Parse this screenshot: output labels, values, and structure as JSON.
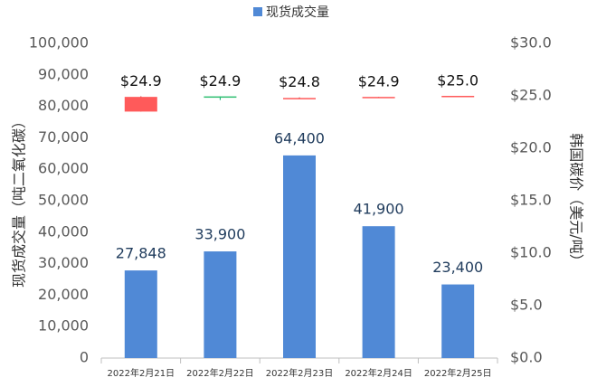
{
  "chart_data": {
    "type": "bar",
    "categories": [
      "2022年2月21日",
      "2022年2月22日",
      "2022年2月23日",
      "2022年2月24日",
      "2022年2月25日"
    ],
    "series": [
      {
        "name": "现货成交量",
        "color": "#5089d6",
        "values": [
          27848,
          33900,
          64400,
          41900,
          23400
        ],
        "value_labels": [
          "27,848",
          "33,900",
          "64,400",
          "41,900",
          "23,400"
        ]
      }
    ],
    "candles": {
      "axis": "y2",
      "up_color": "#ff5a5a",
      "down_color": "#2fbf71",
      "open": [
        23.5,
        24.95,
        24.75,
        24.85,
        24.95
      ],
      "high": [
        24.95,
        24.95,
        24.85,
        24.9,
        25.0
      ],
      "low": [
        23.5,
        24.6,
        24.75,
        24.85,
        24.95
      ],
      "close": [
        24.9,
        24.9,
        24.8,
        24.9,
        25.0
      ],
      "value_labels": [
        "$24.9",
        "$24.9",
        "$24.8",
        "$24.9",
        "$25.0"
      ]
    },
    "ylabel": "现货成交量（吨二氧化碳）",
    "y2label": "韩国碳价（美元/吨）",
    "ylim": [
      0,
      100000
    ],
    "yticks": [
      0,
      {
        "value": 10000,
        "label": "10,000"
      },
      {
        "value": 20000,
        "label": "20,000"
      },
      {
        "value": 30000,
        "label": "30,000"
      },
      {
        "value": 40000,
        "label": "40,000"
      },
      {
        "value": 50000,
        "label": "50,000"
      },
      {
        "value": 60000,
        "label": "60,000"
      },
      {
        "value": 70000,
        "label": "70,000"
      },
      {
        "value": 80000,
        "label": "80,000"
      },
      {
        "value": 90000,
        "label": "90,000"
      },
      {
        "value": 100000,
        "label": "100,000"
      }
    ],
    "y2lim": [
      0,
      30
    ],
    "y2ticks": [
      {
        "value": 0,
        "label": "$0.0"
      },
      {
        "value": 5,
        "label": "$5.0"
      },
      {
        "value": 10,
        "label": "$10.0"
      },
      {
        "value": 15,
        "label": "$15.0"
      },
      {
        "value": 20,
        "label": "$20.0"
      },
      {
        "value": 25,
        "label": "$25.0"
      },
      {
        "value": 30,
        "label": "$30.0"
      }
    ],
    "grid": false
  }
}
